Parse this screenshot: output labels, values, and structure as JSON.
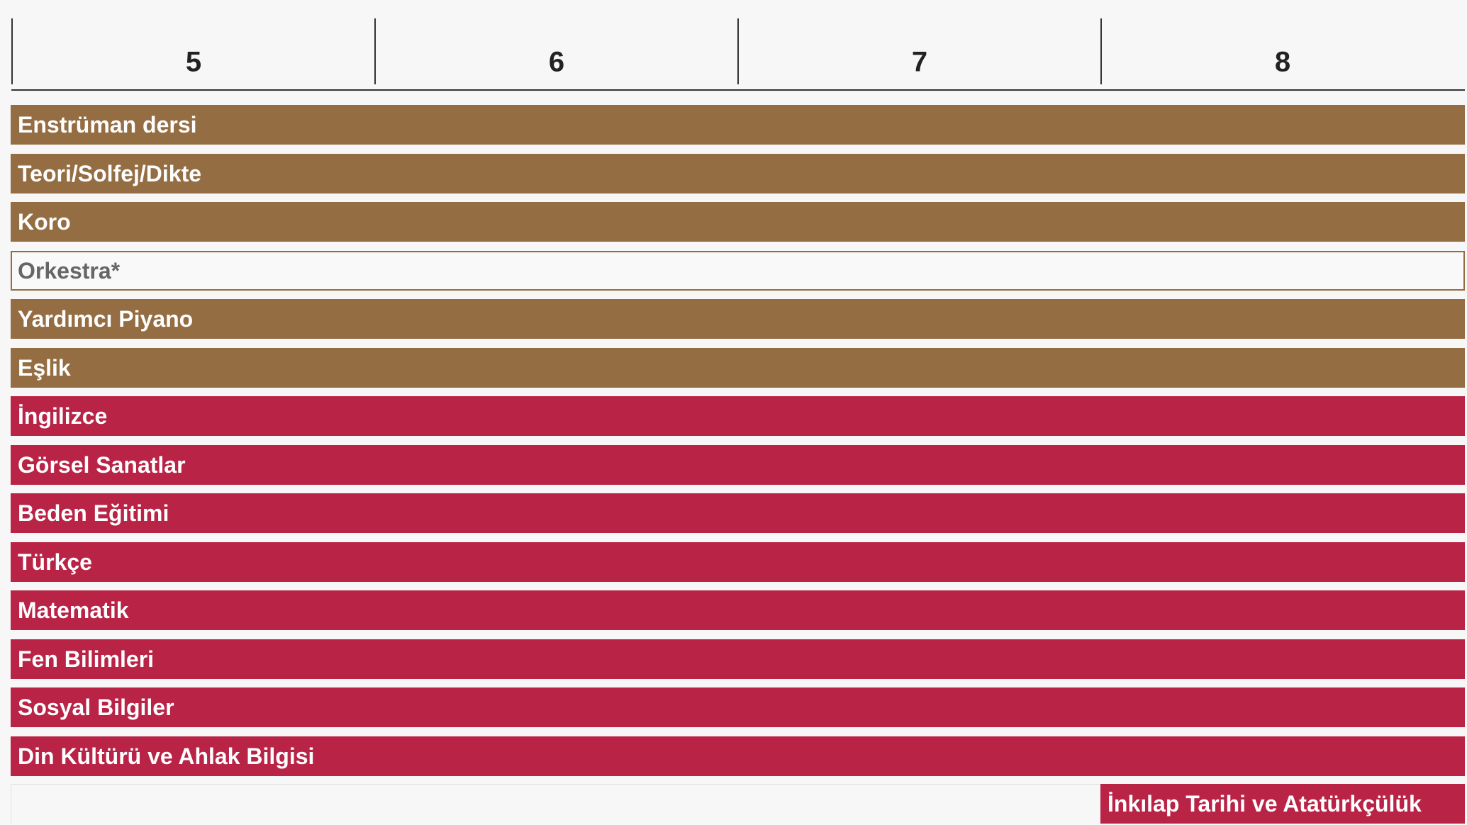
{
  "header": {
    "grades": [
      "5",
      "6",
      "7",
      "8"
    ]
  },
  "courses": [
    "Enstrüman dersi",
    "Teori/Solfej/Dikte",
    "Koro",
    "Orkestra*",
    "Yardımcı Piyano",
    "Eşlik",
    "İngilizce",
    "Görsel Sanatlar",
    "Beden Eğitimi",
    "Türkçe",
    "Matematik",
    "Fen Bilimleri",
    "Sosyal Bilgiler",
    "Din Kültürü ve Ahlak Bilgisi",
    "İnkılap Tarihi ve Atatürkçülük"
  ]
}
